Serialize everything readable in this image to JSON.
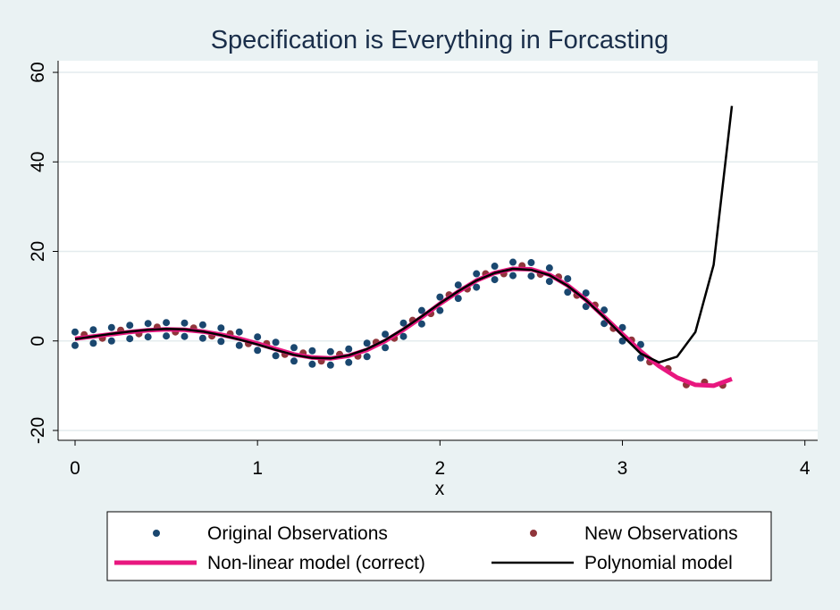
{
  "chart_data": {
    "type": "scatter",
    "title": "Specification is Everything in Forcasting",
    "x_label": "x",
    "xlim": [
      -0.093,
      4.07
    ],
    "ylim": [
      -22.2,
      62.6
    ],
    "xticks": [
      0,
      1,
      2,
      3,
      4
    ],
    "yticks": [
      -20,
      0,
      20,
      40,
      60
    ],
    "grid": true,
    "series": [
      {
        "name": "Original Observations",
        "type": "scatter",
        "color": "#1a476f",
        "x": [
          0,
          0,
          0.1,
          0.1,
          0.2,
          0.2,
          0.3,
          0.3,
          0.4,
          0.4,
          0.5,
          0.5,
          0.6,
          0.6,
          0.7,
          0.7,
          0.8,
          0.8,
          0.9,
          0.9,
          1.0,
          1.0,
          1.1,
          1.1,
          1.2,
          1.2,
          1.3,
          1.3,
          1.4,
          1.4,
          1.5,
          1.5,
          1.6,
          1.6,
          1.7,
          1.7,
          1.8,
          1.8,
          1.9,
          1.9,
          2.0,
          2.0,
          2.1,
          2.1,
          2.2,
          2.2,
          2.3,
          2.3,
          2.4,
          2.4,
          2.5,
          2.5,
          2.6,
          2.6,
          2.7,
          2.7,
          2.8,
          2.8,
          2.9,
          2.9,
          3.0,
          3.0,
          3.1,
          3.1
        ],
        "values": [
          2.0,
          -1.0,
          2.5,
          -0.5,
          3.0,
          0.0,
          3.5,
          0.5,
          3.9,
          0.9,
          4.1,
          1.1,
          4.0,
          1.0,
          3.6,
          0.6,
          2.9,
          -0.1,
          2.0,
          -1.0,
          0.9,
          -2.1,
          -0.3,
          -3.3,
          -1.5,
          -4.5,
          -2.2,
          -5.2,
          -2.4,
          -5.4,
          -1.8,
          -4.8,
          -0.5,
          -3.5,
          1.5,
          -1.5,
          4.0,
          1.0,
          6.8,
          3.8,
          9.8,
          6.8,
          12.5,
          9.5,
          15.0,
          12.0,
          16.7,
          13.7,
          17.6,
          14.6,
          17.5,
          14.5,
          16.3,
          13.3,
          13.9,
          10.9,
          10.7,
          7.7,
          6.9,
          3.9,
          3.0,
          0.0,
          -0.8,
          -3.8
        ]
      },
      {
        "name": "New Observations",
        "type": "scatter",
        "color": "#90353b",
        "x": [
          0.05,
          0.15,
          0.25,
          0.35,
          0.45,
          0.55,
          0.65,
          0.75,
          0.85,
          0.95,
          1.05,
          1.15,
          1.25,
          1.35,
          1.45,
          1.55,
          1.65,
          1.75,
          1.85,
          1.95,
          2.05,
          2.15,
          2.25,
          2.35,
          2.45,
          2.55,
          2.65,
          2.75,
          2.85,
          2.95,
          3.05,
          3.15,
          3.25,
          3.35,
          3.45,
          3.55
        ],
        "values": [
          1.4,
          0.6,
          2.4,
          1.6,
          3.1,
          2.0,
          2.9,
          1.1,
          1.6,
          -0.6,
          -0.6,
          -3.0,
          -2.7,
          -4.5,
          -3.0,
          -3.4,
          -0.3,
          0.6,
          4.6,
          6.1,
          10.3,
          11.6,
          15.0,
          15.0,
          16.8,
          14.9,
          14.3,
          10.2,
          8.0,
          2.8,
          0.2,
          -4.7,
          -6.2,
          -9.8,
          -9.2,
          -9.9
        ]
      },
      {
        "name": "Non-linear model (correct)",
        "type": "line",
        "color": "#e8177f",
        "x": [
          0,
          0.1,
          0.2,
          0.3,
          0.4,
          0.5,
          0.6,
          0.7,
          0.8,
          0.9,
          1.0,
          1.1,
          1.2,
          1.3,
          1.4,
          1.5,
          1.6,
          1.7,
          1.8,
          1.9,
          2.0,
          2.1,
          2.2,
          2.3,
          2.4,
          2.5,
          2.6,
          2.7,
          2.8,
          2.9,
          3.0,
          3.1,
          3.2,
          3.3,
          3.4,
          3.5,
          3.6
        ],
        "values": [
          0.5,
          1.0,
          1.5,
          2.0,
          2.4,
          2.6,
          2.5,
          2.1,
          1.4,
          0.5,
          -0.6,
          -1.8,
          -3.0,
          -3.7,
          -3.9,
          -3.3,
          -2.0,
          0.0,
          2.5,
          5.3,
          8.3,
          11.0,
          13.5,
          15.2,
          16.1,
          16.0,
          14.8,
          12.4,
          9.2,
          5.4,
          1.5,
          -2.3,
          -5.6,
          -8.2,
          -9.8,
          -10.0,
          -8.5
        ]
      },
      {
        "name": "Polynomial model",
        "type": "line",
        "color": "#000000",
        "x": [
          0,
          0.1,
          0.2,
          0.3,
          0.4,
          0.5,
          0.6,
          0.7,
          0.8,
          0.9,
          1.0,
          1.1,
          1.2,
          1.3,
          1.4,
          1.5,
          1.6,
          1.7,
          1.8,
          1.9,
          2.0,
          2.1,
          2.2,
          2.3,
          2.4,
          2.5,
          2.6,
          2.7,
          2.8,
          2.9,
          3.0,
          3.1,
          3.2,
          3.3,
          3.4,
          3.5,
          3.6
        ],
        "values": [
          0.4,
          1.0,
          1.6,
          2.1,
          2.5,
          2.7,
          2.6,
          2.1,
          1.3,
          0.3,
          -0.8,
          -2.0,
          -3.1,
          -3.8,
          -3.9,
          -3.2,
          -1.8,
          0.2,
          2.7,
          5.5,
          8.4,
          11.1,
          13.5,
          15.2,
          16.1,
          15.9,
          14.7,
          12.3,
          9.1,
          5.3,
          1.2,
          -2.8,
          -4.8,
          -3.5,
          2.0,
          17.0,
          52.5
        ]
      }
    ]
  }
}
